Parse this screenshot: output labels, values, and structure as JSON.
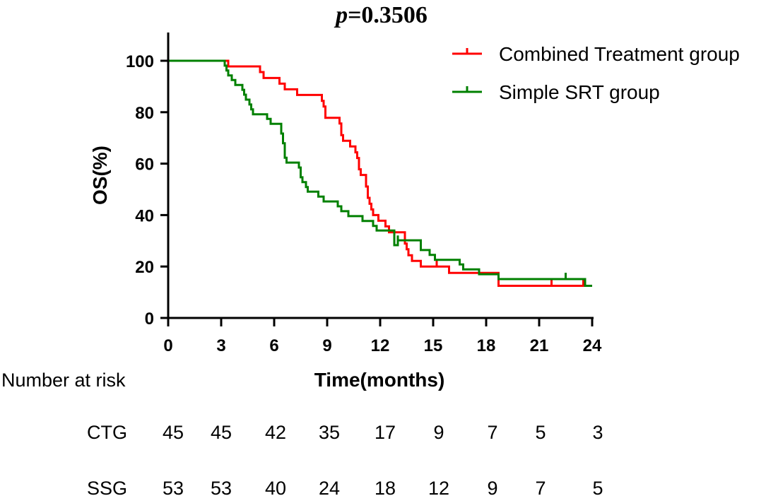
{
  "chart_data": {
    "type": "line",
    "title": {
      "italic": "p",
      "rest": "=0.3506"
    },
    "xlabel": "Time(months)",
    "ylabel": "OS(%)",
    "xlim": [
      0,
      24
    ],
    "ylim": [
      0,
      110
    ],
    "xticks": [
      "0",
      "3",
      "6",
      "9",
      "12",
      "15",
      "18",
      "21",
      "24"
    ],
    "yticks": [
      "0",
      "20",
      "40",
      "60",
      "80",
      "100"
    ],
    "grid": false,
    "legend_position": "top-right",
    "series": [
      {
        "name": "Combined Treatment group",
        "color": "#ff0000",
        "steps": [
          [
            0,
            100
          ],
          [
            3.4,
            97.8
          ],
          [
            5.2,
            95.6
          ],
          [
            5.4,
            93.3
          ],
          [
            6.3,
            91.1
          ],
          [
            6.6,
            88.9
          ],
          [
            7.3,
            86.7
          ],
          [
            8.7,
            84.4
          ],
          [
            8.8,
            82.2
          ],
          [
            8.9,
            80.0
          ],
          [
            8.9,
            77.8
          ],
          [
            9.7,
            75.6
          ],
          [
            9.8,
            73.3
          ],
          [
            9.8,
            71.1
          ],
          [
            9.9,
            68.9
          ],
          [
            10.3,
            66.7
          ],
          [
            10.6,
            64.4
          ],
          [
            10.7,
            62.2
          ],
          [
            10.8,
            60.0
          ],
          [
            10.8,
            57.8
          ],
          [
            10.9,
            55.6
          ],
          [
            11.2,
            53.3
          ],
          [
            11.2,
            51.1
          ],
          [
            11.3,
            48.9
          ],
          [
            11.3,
            46.7
          ],
          [
            11.4,
            44.4
          ],
          [
            11.5,
            42.2
          ],
          [
            11.6,
            40.0
          ],
          [
            11.9,
            37.8
          ],
          [
            12.3,
            35.6
          ],
          [
            12.5,
            33.3
          ],
          [
            13.4,
            31.1
          ],
          [
            13.4,
            28.9
          ],
          [
            13.5,
            26.7
          ],
          [
            13.6,
            24.4
          ],
          [
            13.8,
            22.2
          ],
          [
            14.3,
            20.0
          ],
          [
            15.9,
            17.5
          ],
          [
            18.7,
            12.5
          ]
        ],
        "censored": [
          [
            15.2,
            20.0
          ],
          [
            21.7,
            12.5
          ],
          [
            23.5,
            12.5
          ]
        ]
      },
      {
        "name": "Simple SRT group",
        "color": "#008000",
        "steps": [
          [
            0,
            100
          ],
          [
            3.2,
            98.1
          ],
          [
            3.3,
            96.2
          ],
          [
            3.4,
            94.3
          ],
          [
            3.6,
            92.5
          ],
          [
            3.8,
            90.6
          ],
          [
            4.2,
            88.7
          ],
          [
            4.3,
            86.8
          ],
          [
            4.4,
            84.9
          ],
          [
            4.6,
            83.0
          ],
          [
            4.7,
            81.1
          ],
          [
            4.8,
            79.2
          ],
          [
            5.6,
            77.4
          ],
          [
            5.8,
            75.5
          ],
          [
            6.4,
            73.6
          ],
          [
            6.4,
            71.7
          ],
          [
            6.5,
            69.8
          ],
          [
            6.5,
            67.9
          ],
          [
            6.6,
            66.0
          ],
          [
            6.6,
            64.2
          ],
          [
            6.6,
            62.3
          ],
          [
            6.7,
            60.4
          ],
          [
            7.4,
            58.5
          ],
          [
            7.5,
            56.6
          ],
          [
            7.5,
            54.7
          ],
          [
            7.6,
            52.8
          ],
          [
            7.8,
            50.9
          ],
          [
            7.9,
            49.1
          ],
          [
            8.5,
            47.2
          ],
          [
            8.8,
            45.3
          ],
          [
            9.6,
            43.4
          ],
          [
            9.8,
            41.5
          ],
          [
            10.2,
            39.6
          ],
          [
            11.0,
            37.7
          ],
          [
            11.6,
            35.8
          ],
          [
            11.8,
            34.0
          ],
          [
            13.0,
            32.1
          ],
          [
            13.0,
            30.2
          ],
          [
            12.8,
            28.3
          ],
          [
            14.3,
            26.4
          ],
          [
            14.8,
            24.5
          ],
          [
            15.1,
            22.6
          ],
          [
            16.5,
            20.8
          ],
          [
            16.7,
            18.9
          ],
          [
            17.6,
            17.0
          ],
          [
            18.7,
            15.1
          ],
          [
            23.6,
            12.5
          ]
        ],
        "censored": [
          [
            22.5,
            15.1
          ]
        ]
      }
    ]
  },
  "risk_table": {
    "header": "Number at risk",
    "rows": [
      {
        "label": "CTG",
        "values": [
          "45",
          "45",
          "42",
          "35",
          "17",
          "9",
          "7",
          "5",
          "3"
        ]
      },
      {
        "label": "SSG",
        "values": [
          "53",
          "53",
          "40",
          "24",
          "18",
          "12",
          "9",
          "7",
          "5"
        ]
      }
    ]
  }
}
